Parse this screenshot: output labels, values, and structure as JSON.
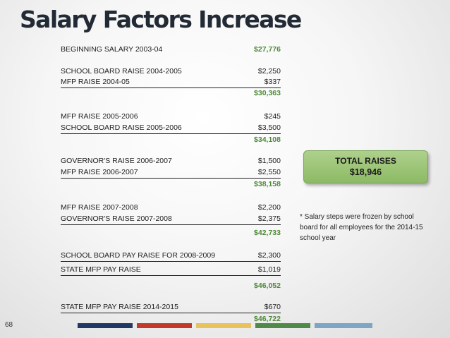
{
  "title": "Salary Factors Increase",
  "rows": [
    {
      "label": "BEGINNING SALARY 2003-04",
      "value": "$27,776"
    },
    {
      "label": "SCHOOL BOARD RAISE 2004-2005",
      "value": "$2,250"
    },
    {
      "label": "MFP RAISE  2004-05",
      "value": "$337"
    },
    {
      "label": "",
      "value": "$30,363"
    },
    {
      "label": "MFP RAISE  2005-2006",
      "value": "$245"
    },
    {
      "label": "SCHOOL BOARD RAISE 2005-2006",
      "value": "$3,500"
    },
    {
      "label": "",
      "value": "$34,108"
    },
    {
      "label": "GOVERNOR'S RAISE 2006-2007",
      "value": "$1,500"
    },
    {
      "label": "MFP RAISE 2006-2007",
      "value": "$2,550"
    },
    {
      "label": "",
      "value": "$38,158"
    },
    {
      "label": "MFP RAISE 2007-2008",
      "value": "$2,200"
    },
    {
      "label": "GOVERNOR'S RAISE 2007-2008",
      "value": "$2,375"
    },
    {
      "label": "",
      "value": "$42,733"
    },
    {
      "label": "SCHOOL BOARD PAY RAISE FOR 2008-2009",
      "value": "$2,300"
    },
    {
      "label": "STATE MFP PAY RAISE",
      "value": "$1,019"
    },
    {
      "label": "",
      "value": "$46,052"
    },
    {
      "label": "STATE MFP PAY RAISE 2014-2015",
      "value": "$670"
    },
    {
      "label": "",
      "value": "$46,722"
    }
  ],
  "total_box": {
    "label": "TOTAL RAISES",
    "value": "$18,946"
  },
  "note": "* Salary steps were frozen by school board for all  employees for the 2014-15 school year",
  "slide_number": "68",
  "colors": {
    "total_text": "#4f8a3a",
    "box_fill": "#9cc477",
    "footer_bars": [
      "#1f3864",
      "#c0392b",
      "#e8c25a",
      "#4f8a4a",
      "#7fa4c4"
    ]
  }
}
